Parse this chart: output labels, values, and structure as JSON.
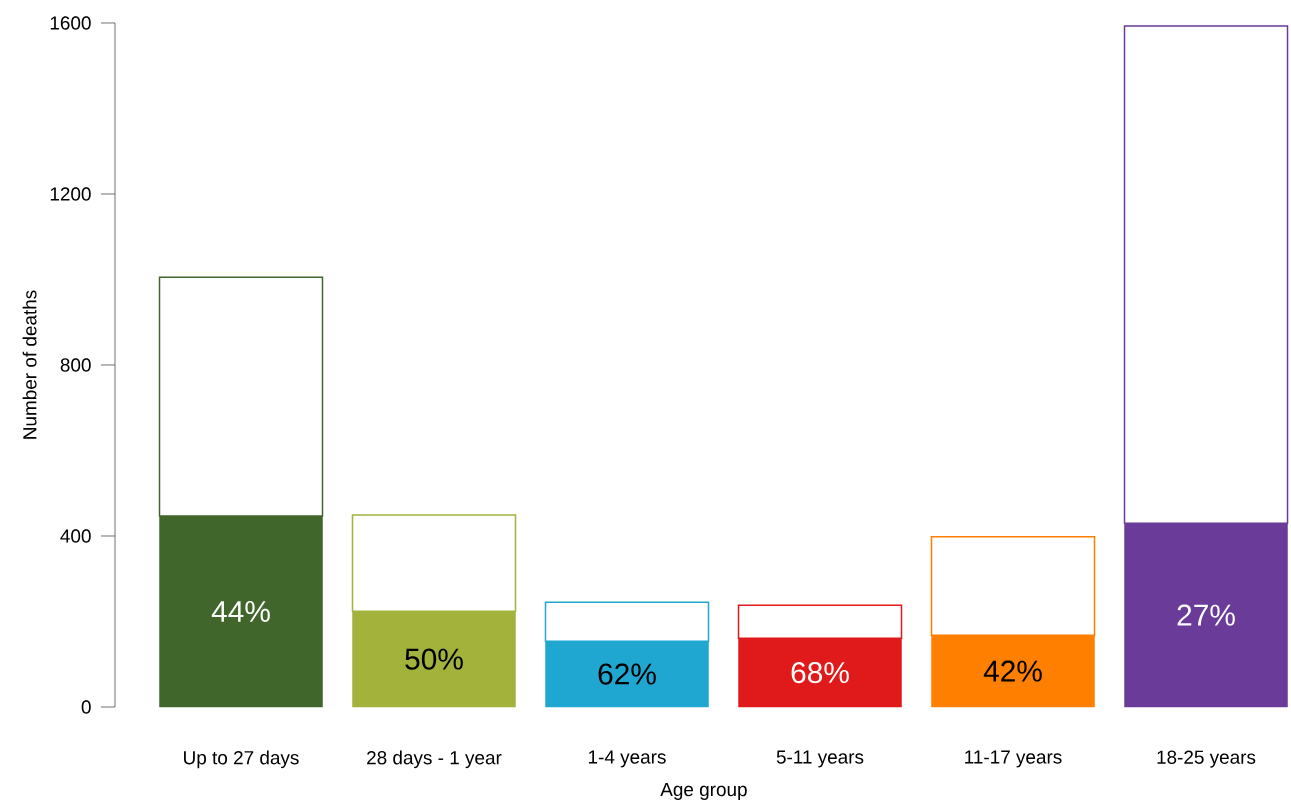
{
  "chart_data": {
    "type": "bar",
    "stacked": true,
    "xlabel": "Age group",
    "ylabel": "Number of deaths",
    "categories": [
      "Up to 27 days",
      "28 days - 1 year",
      "1-4 years",
      "5-11 years",
      "11-17 years",
      "18-25 years"
    ],
    "annotations": [
      "44%",
      "50%",
      "62%",
      "68%",
      "42%",
      "27%"
    ],
    "ylim": [
      0,
      1600
    ],
    "yticks": [
      0,
      400,
      800,
      1200,
      1600
    ],
    "series": [
      {
        "colors": [
          "#41662c",
          "#a2b23b",
          "#1fa7d1",
          "#e0191a",
          "#ff7f00",
          "#6a3b98"
        ],
        "values": [
          447,
          224,
          154,
          161,
          168,
          430
        ]
      },
      {
        "colors": [
          "#41662c",
          "#a2b23b",
          "#1fa7d1",
          "#e0191a",
          "#ff7f00",
          "#6a3b98"
        ],
        "values": [
          558,
          225,
          91,
          77,
          230,
          1163
        ]
      }
    ]
  }
}
